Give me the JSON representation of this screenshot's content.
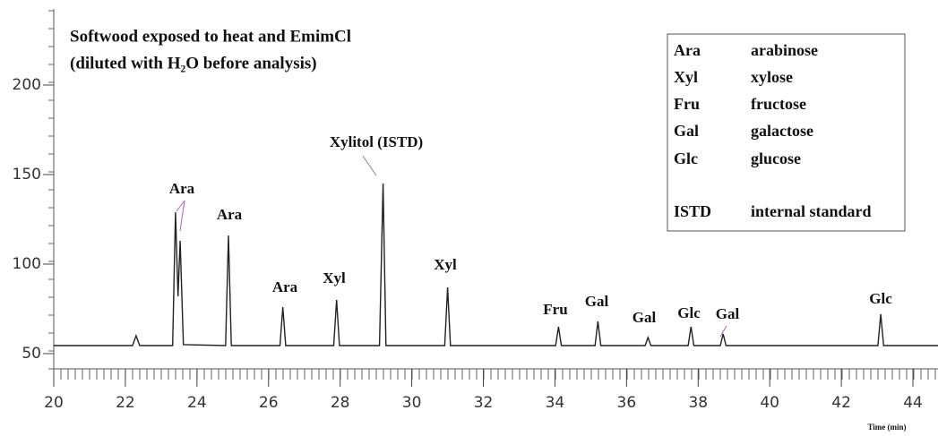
{
  "chart_data": {
    "type": "line",
    "title": "Softwood exposed to heat and EmimCl",
    "subtitle": "(diluted with H₂O before analysis)",
    "x_label": "Time (min)",
    "xlim": [
      20,
      44.7
    ],
    "ylim": [
      41.5,
      247.5
    ],
    "xticks": [
      20,
      22,
      24,
      26,
      28,
      30,
      32,
      34,
      36,
      38,
      40,
      42,
      44
    ],
    "yticks": [
      50,
      100,
      150,
      200
    ],
    "series": [
      {
        "color": "#222222",
        "x": [
          20,
          22.2,
          22.3,
          22.4,
          23.32,
          23.4,
          23.47,
          23.53,
          23.62,
          24.8,
          24.88,
          24.96,
          26.32,
          26.4,
          26.48,
          27.82,
          27.9,
          27.98,
          29.1,
          29.2,
          29.28,
          30.92,
          31.0,
          31.08,
          34.02,
          34.1,
          34.18,
          35.12,
          35.2,
          35.28,
          36.52,
          36.6,
          36.68,
          37.72,
          37.8,
          37.88,
          38.62,
          38.7,
          38.78,
          43.02,
          43.1,
          43.18,
          44.7
        ],
        "values": [
          54.5,
          54.5,
          60,
          54.5,
          54.5,
          129,
          82,
          113,
          55,
          54.5,
          116,
          54.5,
          54.5,
          76,
          54.5,
          54.5,
          80,
          54.5,
          54.5,
          145,
          54.5,
          54.5,
          87,
          54.5,
          54.5,
          65,
          54.5,
          54.5,
          68,
          54.5,
          54.5,
          59,
          54.5,
          54.5,
          65,
          54.5,
          54.5,
          61,
          54.5,
          54.5,
          72,
          54.5,
          54.5
        ]
      }
    ],
    "annotations": [
      "Ara",
      "Ara",
      "Ara",
      "Xyl",
      "Xylitol (ISTD)",
      "Xyl",
      "Fru",
      "Gal",
      "Gal",
      "Glc",
      "Gal",
      "Glc"
    ],
    "legend_table": [
      [
        "Ara",
        "arabinose"
      ],
      [
        "Xyl",
        "xylose"
      ],
      [
        "Fru",
        "fructose"
      ],
      [
        "Gal",
        "galactose"
      ],
      [
        "Glc",
        "glucose"
      ],
      [
        "ISTD",
        "internal standard"
      ]
    ]
  }
}
